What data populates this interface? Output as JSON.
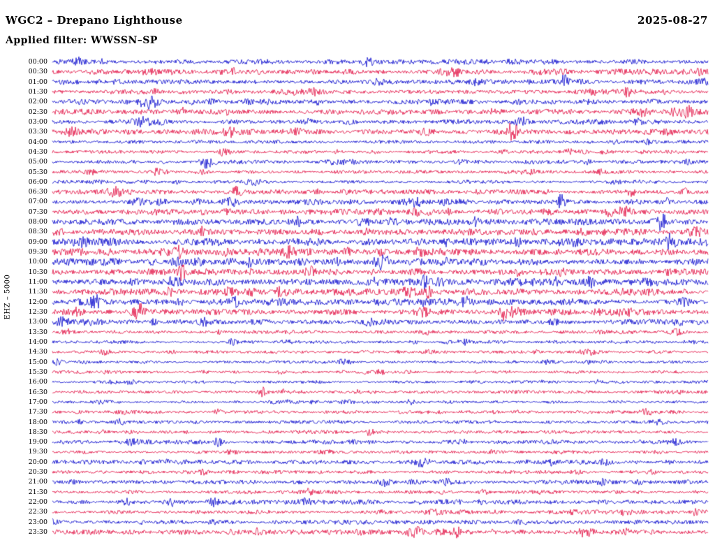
{
  "header": {
    "station_title": "WGC2 – Drepano Lighthouse",
    "date": "2025-08-27",
    "filter_line": "Applied filter: WWSSN–SP"
  },
  "chart_data": {
    "type": "line",
    "chart_kind": "helicorder-seismogram",
    "title": "WGC2 – Drepano Lighthouse",
    "date": "2025-08-27",
    "filter": "WWSSN–SP",
    "channel_scale_label": "EHZ – 5000",
    "minutes_per_row": 30,
    "hours_covered": 24,
    "row_count": 48,
    "row_labels": [
      "00:00",
      "00:30",
      "01:00",
      "01:30",
      "02:00",
      "02:30",
      "03:00",
      "03:30",
      "04:00",
      "04:30",
      "05:00",
      "05:30",
      "06:00",
      "06:30",
      "07:00",
      "07:30",
      "08:00",
      "08:30",
      "09:00",
      "09:30",
      "10:00",
      "10:30",
      "11:00",
      "11:30",
      "12:00",
      "12:30",
      "13:00",
      "13:30",
      "14:00",
      "14:30",
      "15:00",
      "15:30",
      "16:00",
      "16:30",
      "17:00",
      "17:30",
      "18:00",
      "18:30",
      "19:00",
      "19:30",
      "20:00",
      "20:30",
      "21:00",
      "21:30",
      "22:00",
      "22:30",
      "23:00",
      "23:30"
    ],
    "color_cycle": [
      "#0000cc",
      "#e1093e"
    ],
    "background_color": "#ffffff",
    "row_amplitudes": [
      0.9,
      1.0,
      0.9,
      1.0,
      1.0,
      1.0,
      0.9,
      1.0,
      0.6,
      0.6,
      0.7,
      0.6,
      0.6,
      0.9,
      0.9,
      1.0,
      1.1,
      1.2,
      1.3,
      1.3,
      1.3,
      1.2,
      1.3,
      1.2,
      1.2,
      1.1,
      1.0,
      0.6,
      0.55,
      0.55,
      0.55,
      0.55,
      0.55,
      0.6,
      0.55,
      0.6,
      0.55,
      0.6,
      0.8,
      0.6,
      0.8,
      0.65,
      0.8,
      0.65,
      0.8,
      0.7,
      0.8,
      0.9
    ],
    "notable_spikes": [
      {
        "row": 9,
        "frac": 0.79,
        "strength": 2.5
      },
      {
        "row": 13,
        "frac": 0.28,
        "strength": 3.5
      },
      {
        "row": 19,
        "frac": 0.19,
        "strength": 3.0
      },
      {
        "row": 19,
        "frac": 0.56,
        "strength": 2.5
      },
      {
        "row": 20,
        "frac": 0.3,
        "strength": 2.5
      },
      {
        "row": 21,
        "frac": 0.71,
        "strength": 2.5
      },
      {
        "row": 22,
        "frac": 0.82,
        "strength": 2.5
      },
      {
        "row": 23,
        "frac": 0.18,
        "strength": 2.5
      },
      {
        "row": 24,
        "frac": 0.065,
        "strength": 3.0
      },
      {
        "row": 33,
        "frac": 0.32,
        "strength": 2.5
      },
      {
        "row": 38,
        "frac": 0.895,
        "strength": 2.5
      },
      {
        "row": 42,
        "frac": 0.6,
        "strength": 2.5
      },
      {
        "row": 47,
        "frac": 0.615,
        "strength": 4.0
      }
    ],
    "description": "24-hour helicorder drum record; 48 half-hour traces of continuous ambient seismic noise in alternating blue/red, with a few small local-event spikes. No numeric sample values are readable from the plot."
  }
}
